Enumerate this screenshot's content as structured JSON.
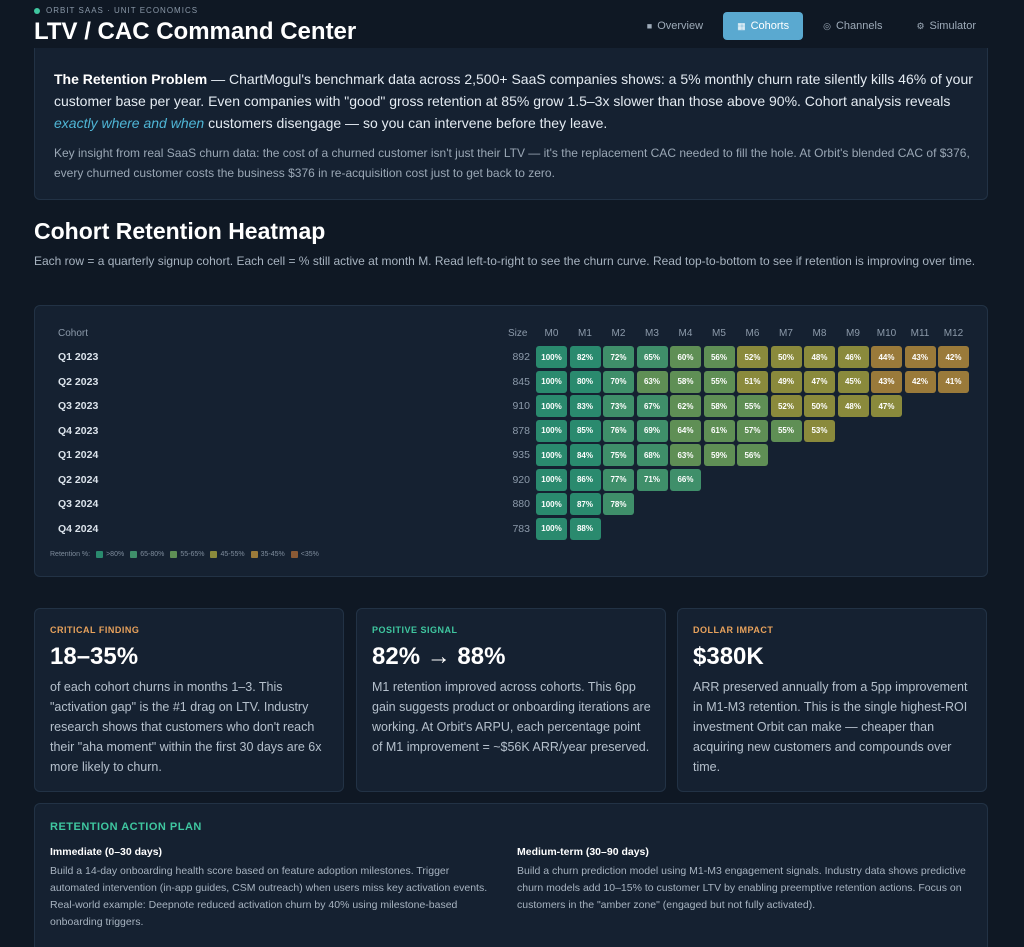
{
  "header": {
    "brand": "ORBIT SAAS · UNIT ECONOMICS",
    "title": "LTV / CAC Command Center",
    "tabs": [
      {
        "label": "Overview",
        "icon": "square-icon"
      },
      {
        "label": "Cohorts",
        "icon": "grid-icon"
      },
      {
        "label": "Channels",
        "icon": "target-icon"
      },
      {
        "label": "Simulator",
        "icon": "dial-icon"
      }
    ],
    "active_tab": "Cohorts"
  },
  "problem": {
    "bold": "The Retention Problem",
    "text1": " — ChartMogul's benchmark data across 2,500+ SaaS companies shows: a 5% monthly churn rate silently kills 46% of your customer base per year. Even companies with \"good\" gross retention at 85% grow 1.5–3x slower than those above 90%. Cohort analysis reveals ",
    "emph": "exactly where and when",
    "text2": " customers disengage — so you can intervene before they leave.",
    "insight": "Key insight from real SaaS churn data: the cost of a churned customer isn't just their LTV — it's the replacement CAC needed to fill the hole. At Orbit's blended CAC of $376, every churned customer costs the business $376 in re-acquisition cost just to get back to zero."
  },
  "heatmap": {
    "title": "Cohort Retention Heatmap",
    "subtitle": "Each row = a quarterly signup cohort. Each cell = % still active at month M. Read left-to-right to see the churn curve. Read top-to-bottom to see if retention is improving over time.",
    "col_cohort": "Cohort",
    "col_size": "Size",
    "months": [
      "M0",
      "M1",
      "M2",
      "M3",
      "M4",
      "M5",
      "M6",
      "M7",
      "M8",
      "M9",
      "M10",
      "M11",
      "M12"
    ],
    "rows": [
      {
        "cohort": "Q1 2023",
        "size": "892",
        "values": [
          100,
          82,
          72,
          65,
          60,
          56,
          52,
          50,
          48,
          46,
          44,
          43,
          42
        ]
      },
      {
        "cohort": "Q2 2023",
        "size": "845",
        "values": [
          100,
          80,
          70,
          63,
          58,
          55,
          51,
          49,
          47,
          45,
          43,
          42,
          41
        ]
      },
      {
        "cohort": "Q3 2023",
        "size": "910",
        "values": [
          100,
          83,
          73,
          67,
          62,
          58,
          55,
          52,
          50,
          48,
          47
        ]
      },
      {
        "cohort": "Q4 2023",
        "size": "878",
        "values": [
          100,
          85,
          76,
          69,
          64,
          61,
          57,
          55,
          53
        ]
      },
      {
        "cohort": "Q1 2024",
        "size": "935",
        "values": [
          100,
          84,
          75,
          68,
          63,
          59,
          56
        ]
      },
      {
        "cohort": "Q2 2024",
        "size": "920",
        "values": [
          100,
          86,
          77,
          71,
          66
        ]
      },
      {
        "cohort": "Q3 2024",
        "size": "880",
        "values": [
          100,
          87,
          78
        ]
      },
      {
        "cohort": "Q4 2024",
        "size": "783",
        "values": [
          100,
          88
        ]
      }
    ],
    "legend_title": "Retention %:",
    "legend": [
      {
        "label": ">80%",
        "color": "#2a8a6e"
      },
      {
        "label": "65-80%",
        "color": "#3f8f6a"
      },
      {
        "label": "55-65%",
        "color": "#5f8f55"
      },
      {
        "label": "45-55%",
        "color": "#8a8a3c"
      },
      {
        "label": "35-45%",
        "color": "#9a7a3a"
      },
      {
        "label": "<35%",
        "color": "#8a5a35"
      }
    ]
  },
  "kpis": [
    {
      "label": "CRITICAL FINDING",
      "color": "#e8a25c",
      "value": "18–35%",
      "text": "of each cohort churns in months 1–3. This \"activation gap\" is the #1 drag on LTV. Industry research shows that customers who don't reach their \"aha moment\" within the first 30 days are 6x more likely to churn."
    },
    {
      "label": "POSITIVE SIGNAL",
      "color": "#3fc7a0",
      "value": "82% → 88%",
      "text": "M1 retention improved across cohorts. This 6pp gain suggests product or onboarding iterations are working. At Orbit's ARPU, each percentage point of M1 improvement = ~$56K ARR/year preserved."
    },
    {
      "label": "DOLLAR IMPACT",
      "color": "#e8a25c",
      "value": "$380K",
      "text": "ARR preserved annually from a 5pp improvement in M1-M3 retention. This is the single highest-ROI investment Orbit can make — cheaper than acquiring new customers and compounds over time."
    }
  ],
  "plan": {
    "title": "RETENTION ACTION PLAN",
    "immediate_title": "Immediate (0–30 days)",
    "immediate_text": "Build a 14-day onboarding health score based on feature adoption milestones. Trigger automated intervention (in-app guides, CSM outreach) when users miss key activation events. Real-world example: Deepnote reduced activation churn by 40% using milestone-based onboarding triggers.",
    "medium_title": "Medium-term (30–90 days)",
    "medium_text": "Build a churn prediction model using M1-M3 engagement signals. Industry data shows predictive churn models add 10–15% to customer LTV by enabling preemptive retention actions. Focus on customers in the \"amber zone\" (engaged but not fully activated)."
  }
}
